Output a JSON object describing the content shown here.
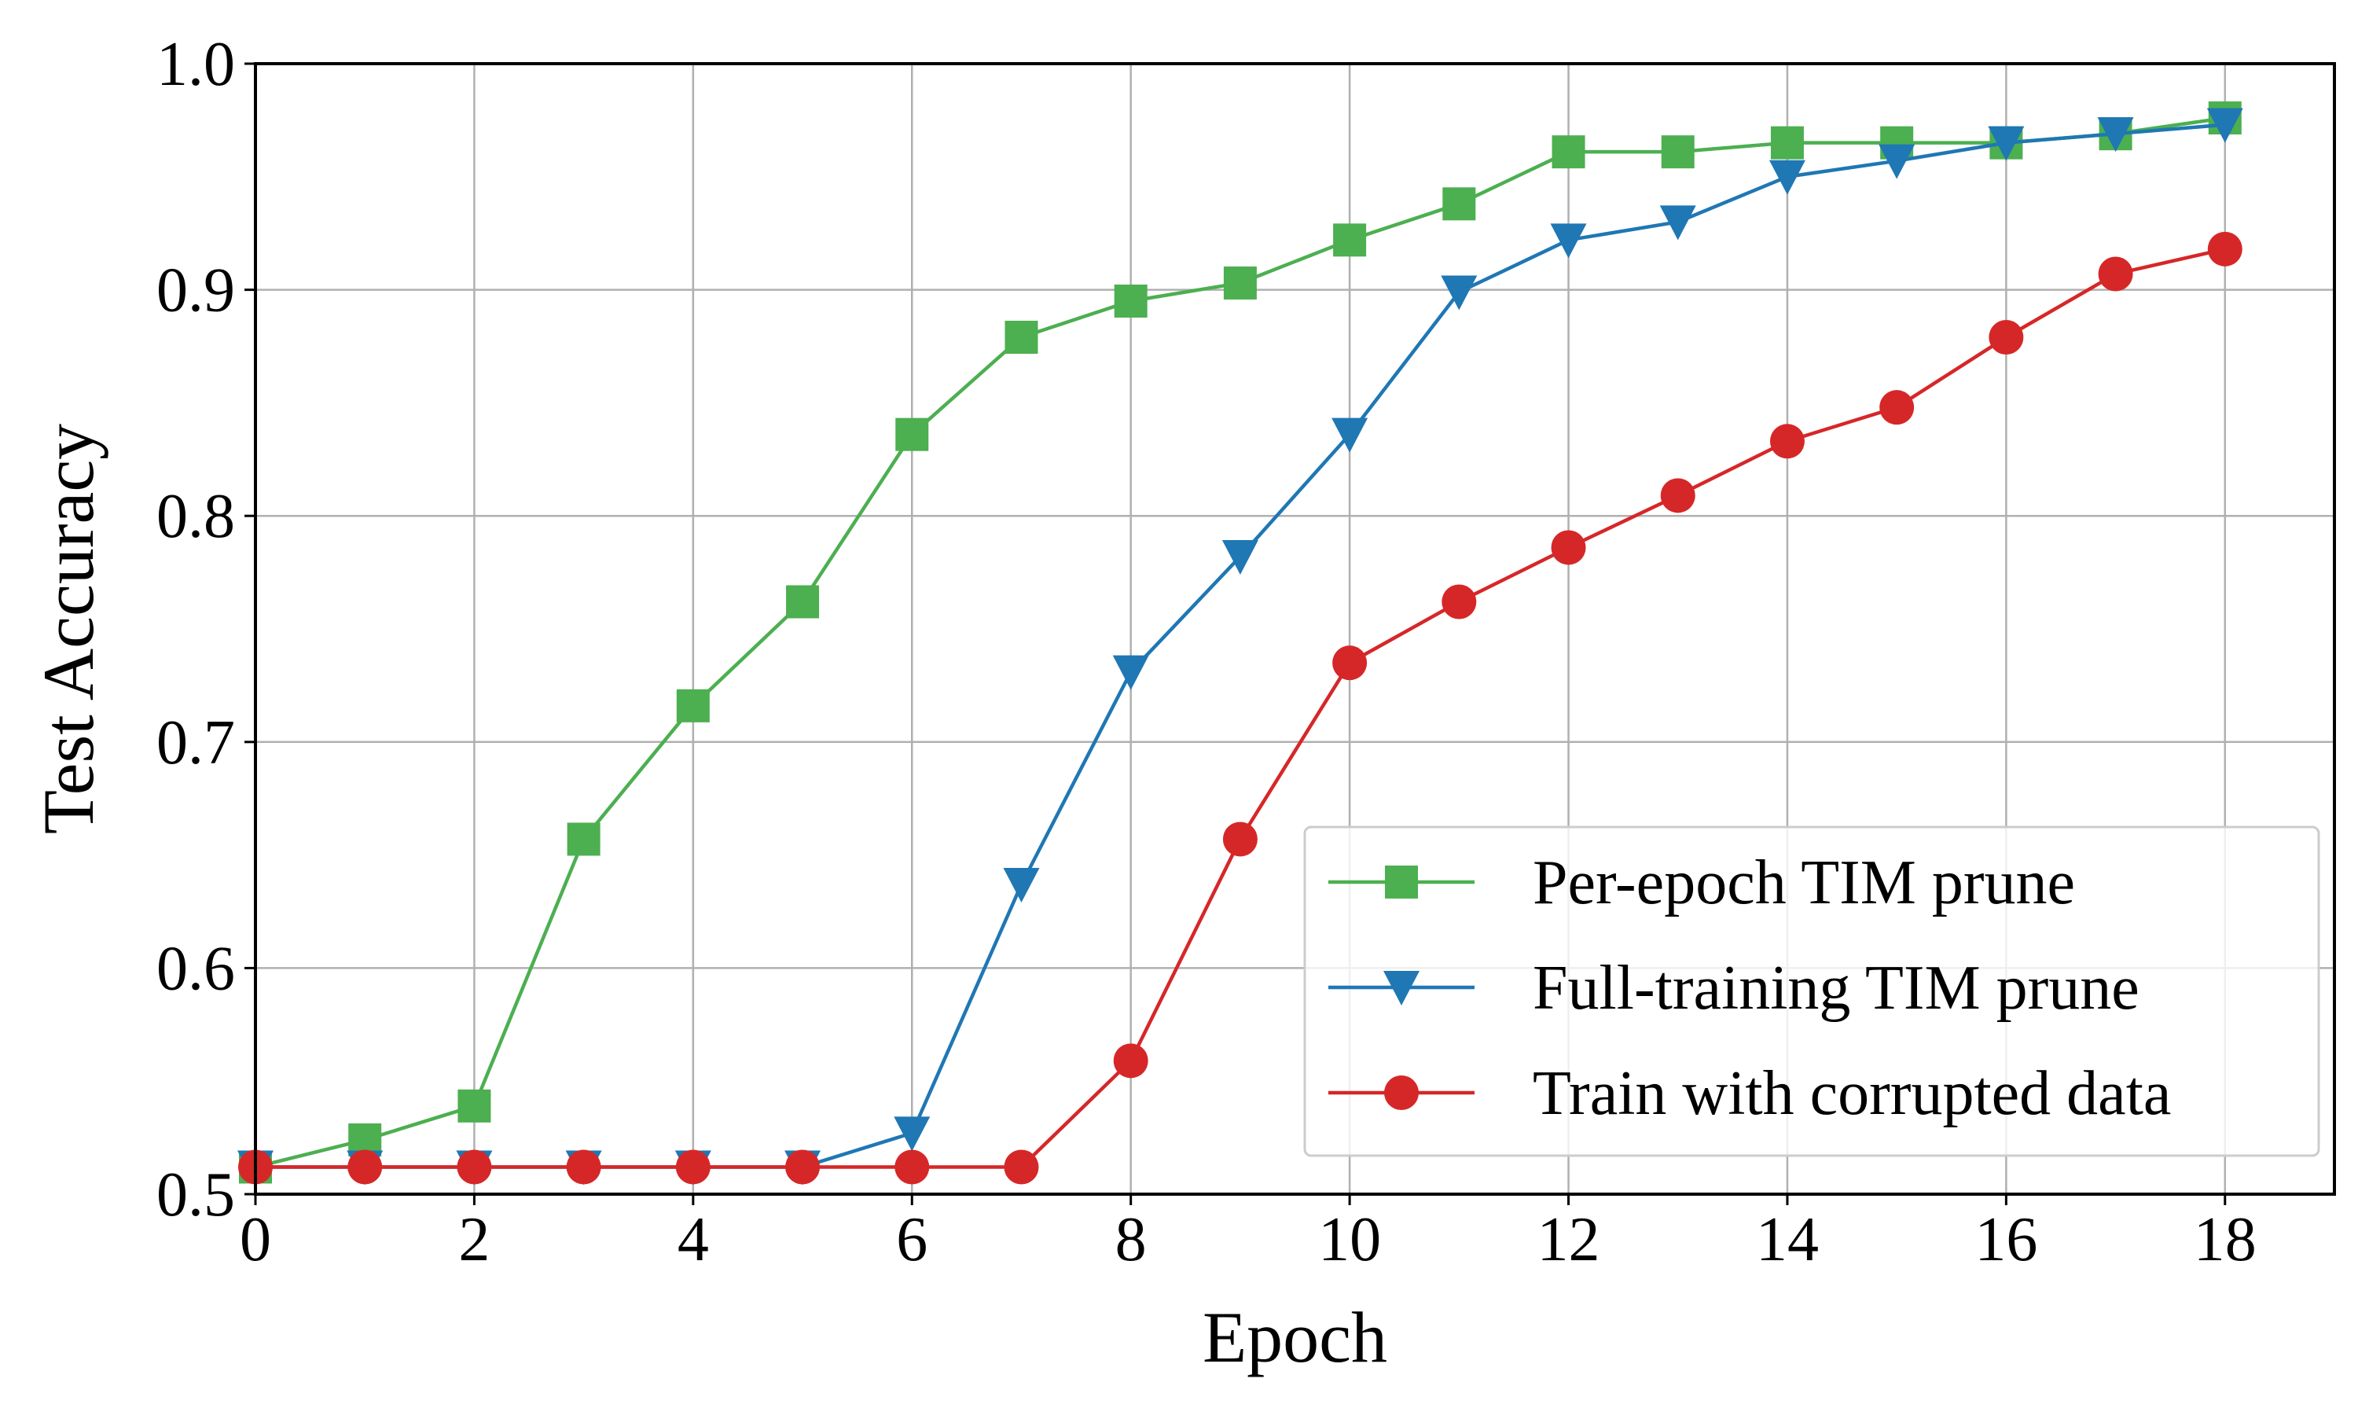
{
  "chart_data": {
    "type": "line",
    "xlabel": "Epoch",
    "ylabel": "Test Accuracy",
    "xlim": [
      0,
      19
    ],
    "ylim": [
      0.5,
      1.0
    ],
    "xticks": [
      0,
      2,
      4,
      6,
      8,
      10,
      12,
      14,
      16,
      18
    ],
    "yticks": [
      0.5,
      0.6,
      0.7,
      0.8,
      0.9,
      1.0
    ],
    "ytick_labels": [
      "0.5",
      "0.6",
      "0.7",
      "0.8",
      "0.9",
      "1.0"
    ],
    "grid": true,
    "legend_position": "lower-right",
    "x": [
      0,
      1,
      2,
      3,
      4,
      5,
      6,
      7,
      8,
      9,
      10,
      11,
      12,
      13,
      14,
      15,
      16,
      17,
      18
    ],
    "series": [
      {
        "name": "Per-epoch TIM prune",
        "color": "#4caf50",
        "marker": "square",
        "values": [
          0.512,
          0.524,
          0.539,
          0.657,
          0.716,
          0.762,
          0.836,
          0.879,
          0.895,
          0.903,
          0.922,
          0.938,
          0.961,
          0.961,
          0.965,
          0.965,
          0.965,
          0.969,
          0.976
        ]
      },
      {
        "name": "Full-training TIM prune",
        "color": "#1f77b4",
        "marker": "triangle-down",
        "values": [
          0.512,
          0.512,
          0.512,
          0.512,
          0.512,
          0.512,
          0.527,
          0.637,
          0.731,
          0.782,
          0.836,
          0.899,
          0.922,
          0.93,
          0.95,
          0.957,
          0.965,
          0.969,
          0.973
        ]
      },
      {
        "name": "Train with corrupted data",
        "color": "#d62728",
        "marker": "circle",
        "values": [
          0.512,
          0.512,
          0.512,
          0.512,
          0.512,
          0.512,
          0.512,
          0.512,
          0.559,
          0.657,
          0.735,
          0.762,
          0.786,
          0.809,
          0.833,
          0.848,
          0.879,
          0.907,
          0.918
        ]
      }
    ]
  }
}
